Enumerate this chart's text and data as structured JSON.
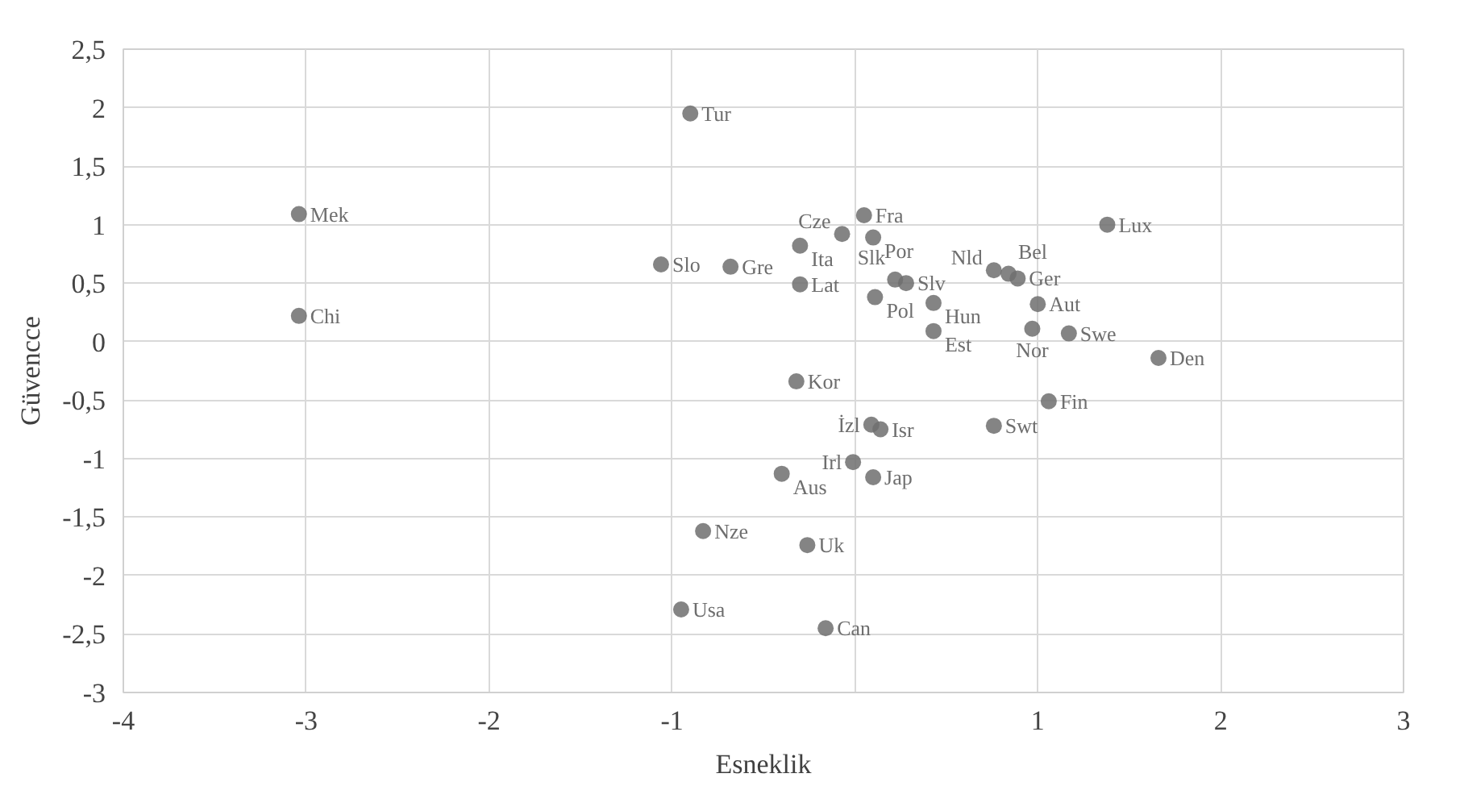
{
  "chart_data": {
    "type": "scatter",
    "xlabel": "Esneklik",
    "ylabel": "Güvencce",
    "xlim": [
      -4,
      3
    ],
    "ylim": [
      -3,
      2.5
    ],
    "xticks": [
      -4,
      -3,
      -2,
      -1,
      {
        "value": 0,
        "label": null
      },
      1,
      2,
      3
    ],
    "yticks": [
      {
        "value": -3,
        "label": "-3"
      },
      {
        "value": -2.5,
        "label": "-2,5"
      },
      {
        "value": -2,
        "label": "-2"
      },
      {
        "value": -1.5,
        "label": "-1,5"
      },
      {
        "value": -1,
        "label": "-1"
      },
      {
        "value": -0.5,
        "label": "-0,5"
      },
      {
        "value": 0,
        "label": "0"
      },
      {
        "value": 0.5,
        "label": "0,5"
      },
      {
        "value": 1,
        "label": "1"
      },
      {
        "value": 1.5,
        "label": "1,5"
      },
      {
        "value": 2,
        "label": "2"
      },
      {
        "value": 2.5,
        "label": "2,5"
      }
    ],
    "grid": true,
    "marker": "circle",
    "series": [
      {
        "name": "Mek",
        "color": "#6e6e6e",
        "x": [
          -3.04
        ],
        "values": [
          1.09
        ]
      },
      {
        "name": "Chi",
        "color": "#6e6e6e",
        "x": [
          -3.04
        ],
        "values": [
          0.22
        ]
      },
      {
        "name": "Tur",
        "color": "#6e6e6e",
        "x": [
          -0.9
        ],
        "values": [
          1.95
        ]
      },
      {
        "name": "Slo",
        "color": "#6e6e6e",
        "x": [
          -1.06
        ],
        "values": [
          0.66
        ]
      },
      {
        "name": "Gre",
        "color": "#6e6e6e",
        "x": [
          -0.68
        ],
        "values": [
          0.64
        ]
      },
      {
        "name": "Ita",
        "color": "#6e6e6e",
        "x": [
          -0.3
        ],
        "values": [
          0.82
        ]
      },
      {
        "name": "Lat",
        "color": "#6e6e6e",
        "x": [
          -0.3
        ],
        "values": [
          0.49
        ]
      },
      {
        "name": "Fra",
        "color": "#6e6e6e",
        "x": [
          0.05
        ],
        "values": [
          1.08
        ]
      },
      {
        "name": "Cze",
        "color": "#6e6e6e",
        "x": [
          -0.07
        ],
        "values": [
          0.92
        ]
      },
      {
        "name": "Por",
        "color": "#6e6e6e",
        "x": [
          0.1
        ],
        "values": [
          0.89
        ]
      },
      {
        "name": "Slk",
        "color": "#6e6e6e",
        "x": [
          0.22
        ],
        "values": [
          0.53
        ]
      },
      {
        "name": "Slv",
        "color": "#6e6e6e",
        "x": [
          0.28
        ],
        "values": [
          0.5
        ]
      },
      {
        "name": "Pol",
        "color": "#6e6e6e",
        "x": [
          0.11
        ],
        "values": [
          0.38
        ]
      },
      {
        "name": "Hun",
        "color": "#6e6e6e",
        "x": [
          0.43
        ],
        "values": [
          0.33
        ]
      },
      {
        "name": "Est",
        "color": "#6e6e6e",
        "x": [
          0.43
        ],
        "values": [
          0.09
        ]
      },
      {
        "name": "Nld",
        "color": "#6e6e6e",
        "x": [
          0.76
        ],
        "values": [
          0.61
        ]
      },
      {
        "name": "Bel",
        "color": "#6e6e6e",
        "x": [
          0.84
        ],
        "values": [
          0.58
        ]
      },
      {
        "name": "Ger",
        "color": "#6e6e6e",
        "x": [
          0.89
        ],
        "values": [
          0.54
        ]
      },
      {
        "name": "Lux",
        "color": "#6e6e6e",
        "x": [
          1.38
        ],
        "values": [
          1.0
        ]
      },
      {
        "name": "Aut",
        "color": "#6e6e6e",
        "x": [
          1.0
        ],
        "values": [
          0.32
        ]
      },
      {
        "name": "Nor",
        "color": "#6e6e6e",
        "x": [
          0.97
        ],
        "values": [
          0.11
        ]
      },
      {
        "name": "Swe",
        "color": "#6e6e6e",
        "x": [
          1.17
        ],
        "values": [
          0.07
        ]
      },
      {
        "name": "Den",
        "color": "#6e6e6e",
        "x": [
          1.66
        ],
        "values": [
          -0.14
        ]
      },
      {
        "name": "Fin",
        "color": "#6e6e6e",
        "x": [
          1.06
        ],
        "values": [
          -0.51
        ]
      },
      {
        "name": "Swt",
        "color": "#6e6e6e",
        "x": [
          0.76
        ],
        "values": [
          -0.72
        ]
      },
      {
        "name": "Kor",
        "color": "#6e6e6e",
        "x": [
          -0.32
        ],
        "values": [
          -0.34
        ]
      },
      {
        "name": "İzl",
        "color": "#6e6e6e",
        "x": [
          0.09
        ],
        "values": [
          -0.71
        ]
      },
      {
        "name": "Isr",
        "color": "#6e6e6e",
        "x": [
          0.14
        ],
        "values": [
          -0.75
        ]
      },
      {
        "name": "Irl",
        "color": "#6e6e6e",
        "x": [
          -0.01
        ],
        "values": [
          -1.03
        ]
      },
      {
        "name": "Aus",
        "color": "#6e6e6e",
        "x": [
          -0.4
        ],
        "values": [
          -1.13
        ]
      },
      {
        "name": "Jap",
        "color": "#6e6e6e",
        "x": [
          0.1
        ],
        "values": [
          -1.16
        ]
      },
      {
        "name": "Nze",
        "color": "#6e6e6e",
        "x": [
          -0.83
        ],
        "values": [
          -1.62
        ]
      },
      {
        "name": "Uk",
        "color": "#6e6e6e",
        "x": [
          -0.26
        ],
        "values": [
          -1.74
        ]
      },
      {
        "name": "Usa",
        "color": "#6e6e6e",
        "x": [
          -0.95
        ],
        "values": [
          -2.29
        ]
      },
      {
        "name": "Can",
        "color": "#6e6e6e",
        "x": [
          -0.16
        ],
        "values": [
          -2.45
        ]
      }
    ]
  }
}
